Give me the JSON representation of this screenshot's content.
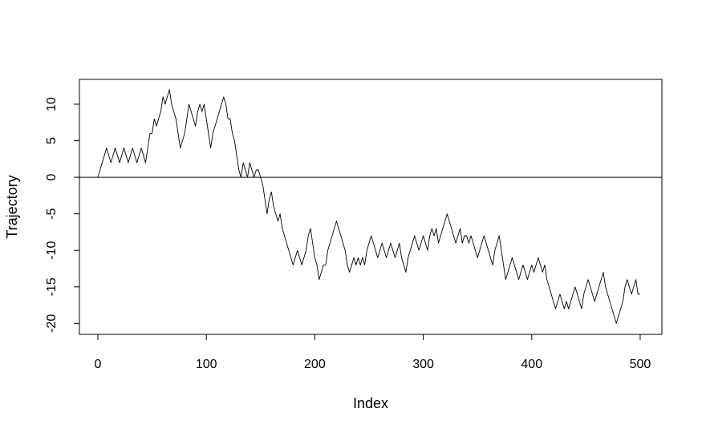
{
  "chart_data": {
    "type": "line",
    "title": "",
    "xlabel": "Index",
    "ylabel": "Trajectory",
    "xlim": [
      -17,
      520
    ],
    "ylim": [
      -21.5,
      13.4
    ],
    "x_ticks": [
      0,
      100,
      200,
      300,
      400,
      500
    ],
    "y_ticks": [
      -20,
      -15,
      -10,
      -5,
      0,
      5,
      10
    ],
    "reference_line": 0,
    "line_color": "#000000",
    "series": [
      {
        "name": "Trajectory",
        "points": [
          [
            0,
            0
          ],
          [
            2,
            1
          ],
          [
            4,
            2
          ],
          [
            6,
            3
          ],
          [
            8,
            4
          ],
          [
            10,
            3
          ],
          [
            12,
            2
          ],
          [
            14,
            3
          ],
          [
            16,
            4
          ],
          [
            18,
            3
          ],
          [
            20,
            2
          ],
          [
            22,
            3
          ],
          [
            24,
            4
          ],
          [
            26,
            3
          ],
          [
            28,
            2
          ],
          [
            30,
            3
          ],
          [
            32,
            4
          ],
          [
            34,
            3
          ],
          [
            36,
            2
          ],
          [
            38,
            3
          ],
          [
            40,
            4
          ],
          [
            42,
            3
          ],
          [
            44,
            2
          ],
          [
            46,
            4
          ],
          [
            48,
            6
          ],
          [
            50,
            6
          ],
          [
            52,
            8
          ],
          [
            54,
            7
          ],
          [
            56,
            8
          ],
          [
            58,
            9
          ],
          [
            60,
            11
          ],
          [
            62,
            10
          ],
          [
            64,
            11
          ],
          [
            66,
            12
          ],
          [
            68,
            10
          ],
          [
            70,
            9
          ],
          [
            72,
            8
          ],
          [
            74,
            6
          ],
          [
            76,
            4
          ],
          [
            78,
            5
          ],
          [
            80,
            6
          ],
          [
            82,
            8
          ],
          [
            84,
            10
          ],
          [
            86,
            9
          ],
          [
            88,
            8
          ],
          [
            90,
            7
          ],
          [
            92,
            9
          ],
          [
            94,
            10
          ],
          [
            96,
            9
          ],
          [
            98,
            10
          ],
          [
            100,
            8
          ],
          [
            102,
            6
          ],
          [
            104,
            4
          ],
          [
            106,
            6
          ],
          [
            108,
            7
          ],
          [
            110,
            8
          ],
          [
            112,
            9
          ],
          [
            114,
            10
          ],
          [
            116,
            11
          ],
          [
            118,
            10
          ],
          [
            120,
            8
          ],
          [
            122,
            8
          ],
          [
            124,
            6
          ],
          [
            126,
            5
          ],
          [
            128,
            3
          ],
          [
            130,
            1
          ],
          [
            132,
            0
          ],
          [
            134,
            2
          ],
          [
            136,
            1
          ],
          [
            138,
            0
          ],
          [
            140,
            2
          ],
          [
            142,
            1
          ],
          [
            144,
            0
          ],
          [
            146,
            1
          ],
          [
            148,
            1
          ],
          [
            150,
            0
          ],
          [
            152,
            -1
          ],
          [
            154,
            -3
          ],
          [
            156,
            -5
          ],
          [
            158,
            -3
          ],
          [
            160,
            -2
          ],
          [
            162,
            -4
          ],
          [
            164,
            -5
          ],
          [
            166,
            -6
          ],
          [
            168,
            -5
          ],
          [
            170,
            -7
          ],
          [
            172,
            -8
          ],
          [
            174,
            -9
          ],
          [
            176,
            -10
          ],
          [
            178,
            -11
          ],
          [
            180,
            -12
          ],
          [
            182,
            -11
          ],
          [
            184,
            -10
          ],
          [
            186,
            -11
          ],
          [
            188,
            -12
          ],
          [
            190,
            -11
          ],
          [
            192,
            -10
          ],
          [
            194,
            -8
          ],
          [
            196,
            -7
          ],
          [
            198,
            -9
          ],
          [
            200,
            -11
          ],
          [
            202,
            -12
          ],
          [
            204,
            -14
          ],
          [
            206,
            -13
          ],
          [
            208,
            -12
          ],
          [
            210,
            -12
          ],
          [
            212,
            -10
          ],
          [
            214,
            -9
          ],
          [
            216,
            -8
          ],
          [
            218,
            -7
          ],
          [
            220,
            -6
          ],
          [
            222,
            -7
          ],
          [
            224,
            -8
          ],
          [
            226,
            -9
          ],
          [
            228,
            -10
          ],
          [
            230,
            -12
          ],
          [
            232,
            -13
          ],
          [
            234,
            -12
          ],
          [
            236,
            -11
          ],
          [
            238,
            -12
          ],
          [
            240,
            -11
          ],
          [
            242,
            -12
          ],
          [
            244,
            -11
          ],
          [
            246,
            -12
          ],
          [
            248,
            -10
          ],
          [
            250,
            -9
          ],
          [
            252,
            -8
          ],
          [
            254,
            -9
          ],
          [
            256,
            -10
          ],
          [
            258,
            -11
          ],
          [
            260,
            -10
          ],
          [
            262,
            -9
          ],
          [
            264,
            -10
          ],
          [
            266,
            -11
          ],
          [
            268,
            -10
          ],
          [
            270,
            -9
          ],
          [
            272,
            -10
          ],
          [
            274,
            -11
          ],
          [
            276,
            -10
          ],
          [
            278,
            -9
          ],
          [
            280,
            -11
          ],
          [
            282,
            -12
          ],
          [
            284,
            -13
          ],
          [
            286,
            -11
          ],
          [
            288,
            -10
          ],
          [
            290,
            -9
          ],
          [
            292,
            -8
          ],
          [
            294,
            -9
          ],
          [
            296,
            -10
          ],
          [
            298,
            -9
          ],
          [
            300,
            -8
          ],
          [
            302,
            -9
          ],
          [
            304,
            -10
          ],
          [
            306,
            -8
          ],
          [
            308,
            -7
          ],
          [
            310,
            -8
          ],
          [
            312,
            -7
          ],
          [
            314,
            -9
          ],
          [
            316,
            -8
          ],
          [
            318,
            -7
          ],
          [
            320,
            -6
          ],
          [
            322,
            -5
          ],
          [
            324,
            -6
          ],
          [
            326,
            -7
          ],
          [
            328,
            -8
          ],
          [
            330,
            -9
          ],
          [
            332,
            -8
          ],
          [
            334,
            -7
          ],
          [
            336,
            -9
          ],
          [
            338,
            -8
          ],
          [
            340,
            -8
          ],
          [
            342,
            -9
          ],
          [
            344,
            -8
          ],
          [
            346,
            -9
          ],
          [
            348,
            -10
          ],
          [
            350,
            -11
          ],
          [
            352,
            -10
          ],
          [
            354,
            -9
          ],
          [
            356,
            -8
          ],
          [
            358,
            -9
          ],
          [
            360,
            -10
          ],
          [
            362,
            -11
          ],
          [
            364,
            -12
          ],
          [
            366,
            -10
          ],
          [
            368,
            -9
          ],
          [
            370,
            -8
          ],
          [
            372,
            -10
          ],
          [
            374,
            -12
          ],
          [
            376,
            -14
          ],
          [
            378,
            -13
          ],
          [
            380,
            -12
          ],
          [
            382,
            -11
          ],
          [
            384,
            -12
          ],
          [
            386,
            -13
          ],
          [
            388,
            -14
          ],
          [
            390,
            -13
          ],
          [
            392,
            -12
          ],
          [
            394,
            -13
          ],
          [
            396,
            -14
          ],
          [
            398,
            -13
          ],
          [
            400,
            -12
          ],
          [
            402,
            -13
          ],
          [
            404,
            -12
          ],
          [
            406,
            -11
          ],
          [
            408,
            -12
          ],
          [
            410,
            -13
          ],
          [
            412,
            -12
          ],
          [
            414,
            -14
          ],
          [
            416,
            -15
          ],
          [
            418,
            -16
          ],
          [
            420,
            -17
          ],
          [
            422,
            -18
          ],
          [
            424,
            -17
          ],
          [
            426,
            -16
          ],
          [
            428,
            -17
          ],
          [
            430,
            -18
          ],
          [
            432,
            -17
          ],
          [
            434,
            -18
          ],
          [
            436,
            -17
          ],
          [
            438,
            -16
          ],
          [
            440,
            -15
          ],
          [
            442,
            -16
          ],
          [
            444,
            -17
          ],
          [
            446,
            -18
          ],
          [
            448,
            -16
          ],
          [
            450,
            -15
          ],
          [
            452,
            -14
          ],
          [
            454,
            -15
          ],
          [
            456,
            -16
          ],
          [
            458,
            -17
          ],
          [
            460,
            -16
          ],
          [
            462,
            -15
          ],
          [
            464,
            -14
          ],
          [
            466,
            -13
          ],
          [
            468,
            -15
          ],
          [
            470,
            -16
          ],
          [
            472,
            -17
          ],
          [
            474,
            -18
          ],
          [
            476,
            -19
          ],
          [
            478,
            -20
          ],
          [
            480,
            -19
          ],
          [
            482,
            -18
          ],
          [
            484,
            -17
          ],
          [
            486,
            -15
          ],
          [
            488,
            -14
          ],
          [
            490,
            -15
          ],
          [
            492,
            -16
          ],
          [
            494,
            -15
          ],
          [
            496,
            -14
          ],
          [
            498,
            -16
          ],
          [
            500,
            -16
          ]
        ]
      }
    ]
  }
}
